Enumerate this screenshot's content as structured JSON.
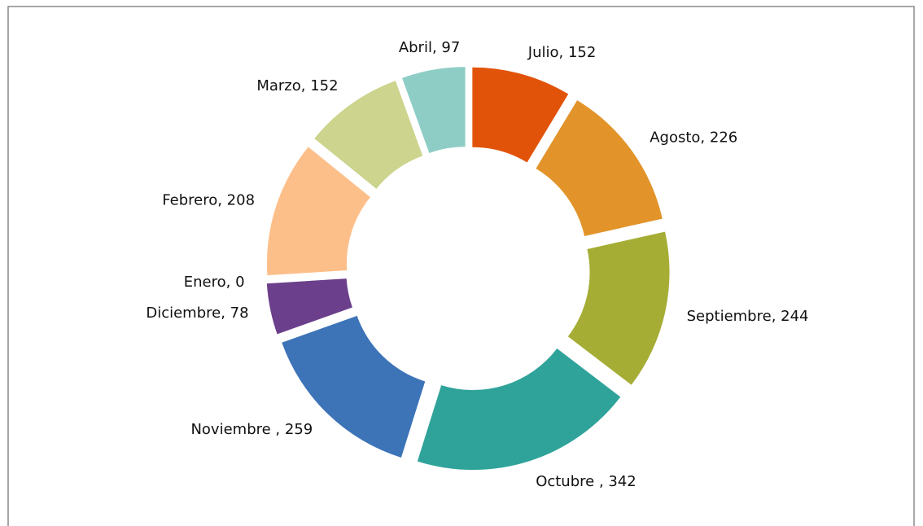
{
  "chart_data": {
    "type": "donut",
    "categories": [
      "Julio",
      "Agosto",
      "Septiembre",
      "Octubre",
      "Noviembre",
      "Diciembre",
      "Enero",
      "Febrero",
      "Marzo",
      "Abril"
    ],
    "values": [
      152,
      226,
      244,
      342,
      259,
      78,
      0,
      208,
      152,
      97
    ],
    "value_labels": [
      "Julio, 152",
      "Agosto, 226",
      "Septiembre, 244",
      "Octubre , 342",
      "Noviembre , 259",
      "Diciembre, 78",
      "Enero, 0",
      "Febrero, 208",
      "Marzo, 152",
      "Abril, 97"
    ],
    "colors": [
      "#e2530a",
      "#e2942a",
      "#a5ad35",
      "#2fa39a",
      "#3d74b8",
      "#6b3f8b",
      "#9bbb59",
      "#fdbf8a",
      "#ccd48d",
      "#8ecdc5"
    ]
  }
}
